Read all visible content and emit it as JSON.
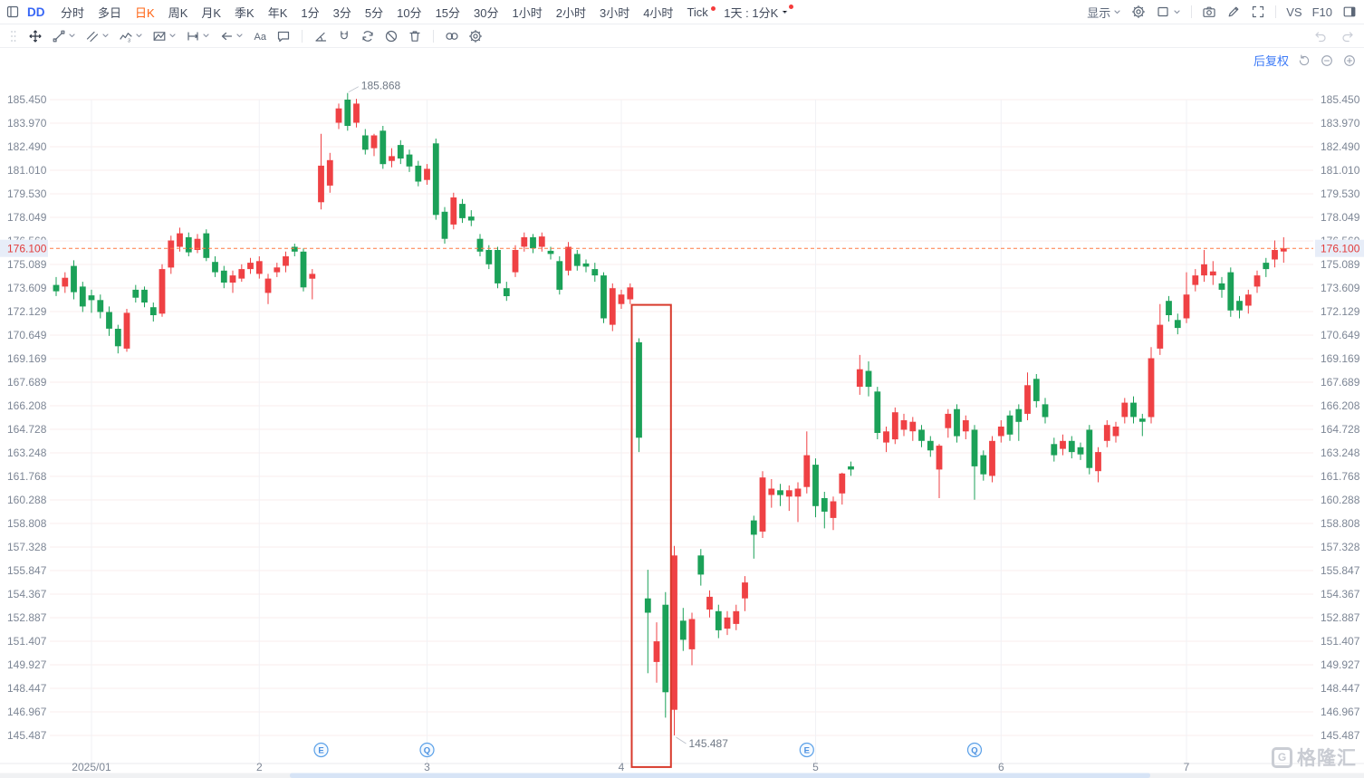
{
  "header": {
    "symbol": "DD",
    "timeframes": [
      {
        "label": "分时"
      },
      {
        "label": "多日"
      },
      {
        "label": "日K",
        "active": true
      },
      {
        "label": "周K"
      },
      {
        "label": "月K"
      },
      {
        "label": "季K"
      },
      {
        "label": "年K"
      },
      {
        "label": "1分"
      },
      {
        "label": "3分"
      },
      {
        "label": "5分"
      },
      {
        "label": "10分"
      },
      {
        "label": "15分"
      },
      {
        "label": "30分"
      },
      {
        "label": "1小时"
      },
      {
        "label": "2小时"
      },
      {
        "label": "3小时"
      },
      {
        "label": "4小时"
      },
      {
        "label": "Tick",
        "dot": true
      }
    ],
    "custom_timeframe": {
      "label": "1天 : 1分K",
      "dot": true
    },
    "right_controls": [
      {
        "name": "display-menu",
        "label": "显示",
        "chevron": true
      },
      {
        "name": "indicator-settings",
        "icon": "gear-icon"
      },
      {
        "name": "chart-style",
        "icon": "rect-icon",
        "chevron": true
      },
      {
        "divider": true
      },
      {
        "name": "screenshot",
        "icon": "camera-icon"
      },
      {
        "name": "annotate",
        "icon": "pencil-icon"
      },
      {
        "name": "fullscreen",
        "icon": "expand-icon"
      },
      {
        "divider": true
      },
      {
        "name": "compare",
        "label": "VS"
      },
      {
        "name": "f10",
        "label": "F10"
      },
      {
        "name": "right-panel",
        "icon": "sidebar-icon"
      }
    ]
  },
  "drawing_toolbar": {
    "tools": [
      {
        "name": "cursor",
        "icon": "move-cross-icon",
        "active": true
      },
      {
        "name": "trend-line",
        "icon": "trend-line-icon",
        "chevron": true
      },
      {
        "name": "channel",
        "icon": "channel-icon",
        "chevron": true
      },
      {
        "name": "wave",
        "icon": "wave-icon",
        "chevron": true
      },
      {
        "name": "pattern",
        "icon": "pattern-icon",
        "chevron": true
      },
      {
        "name": "measure",
        "icon": "measure-icon",
        "chevron": true
      },
      {
        "name": "arrow",
        "icon": "arrow-left-icon",
        "chevron": true
      },
      {
        "name": "text",
        "icon": "text-icon"
      },
      {
        "name": "comment",
        "icon": "comment-icon"
      },
      {
        "divider": true
      },
      {
        "name": "angle",
        "icon": "angle-icon"
      },
      {
        "name": "magnet",
        "icon": "magnet-icon"
      },
      {
        "name": "continuous-draw",
        "icon": "sync-icon"
      },
      {
        "name": "hide-drawings",
        "icon": "ban-icon"
      },
      {
        "name": "delete-drawings",
        "icon": "trash-icon"
      },
      {
        "divider": true
      },
      {
        "name": "overlay-compare",
        "icon": "rings-icon"
      },
      {
        "name": "draw-settings",
        "icon": "gear-icon"
      }
    ]
  },
  "chart_overlay": {
    "adjustment_label": "后复权",
    "watermark": "格隆汇",
    "watermark_logo": "G"
  },
  "chart_data": {
    "type": "candlestick",
    "symbol": "DD",
    "period": "日K",
    "date_range": "2025/01 - 2025/07",
    "price_axis_labels": [
      "185.450",
      "183.970",
      "182.490",
      "181.010",
      "179.530",
      "178.049",
      "176.569",
      "175.089",
      "173.609",
      "172.129",
      "170.649",
      "169.169",
      "167.689",
      "166.208",
      "164.728",
      "163.248",
      "161.768",
      "160.288",
      "158.808",
      "157.328",
      "155.847",
      "154.367",
      "152.887",
      "151.407",
      "149.927",
      "148.447",
      "146.967",
      "145.487"
    ],
    "axis_top_value": 185.45,
    "axis_bottom_value": 145.487,
    "months": [
      {
        "label": "2025/01",
        "index": 4
      },
      {
        "label": "2",
        "index": 23
      },
      {
        "label": "3",
        "index": 42
      },
      {
        "label": "4",
        "index": 64
      },
      {
        "label": "5",
        "index": 86
      },
      {
        "label": "6",
        "index": 107
      },
      {
        "label": "7",
        "index": 128
      }
    ],
    "event_markers": [
      {
        "letter": "E",
        "index": 30
      },
      {
        "letter": "Q",
        "index": 42
      },
      {
        "letter": "E",
        "index": 85
      },
      {
        "letter": "Q",
        "index": 104
      }
    ],
    "current_price": "176.100",
    "high_annotation": {
      "index": 33,
      "label": "185.868"
    },
    "low_annotation": {
      "index": 70,
      "label": "145.487"
    },
    "drawing_rectangle": {
      "from_index": 66,
      "to_index": 69,
      "top_price": 172.55,
      "bottom_price": 143.5
    },
    "colors": {
      "up": "#ef4144",
      "down": "#1ba158",
      "current_price_line": "#ff7a45",
      "current_price_text": "#e23b3b",
      "current_price_bg": "#e7edf8",
      "marker_blue": "#4a90e0",
      "axis_text": "#7d8695",
      "grid_h": "#f8ecec",
      "grid_v": "#f1f2f5",
      "annotation_red": "#d83a2c"
    },
    "ohlc": [
      [
        173.8,
        174.3,
        173.1,
        173.4
      ],
      [
        173.7,
        174.6,
        173.3,
        174.25
      ],
      [
        175.0,
        175.35,
        172.9,
        173.35
      ],
      [
        173.7,
        174.0,
        172.1,
        172.45
      ],
      [
        173.15,
        173.5,
        172.05,
        172.85
      ],
      [
        172.85,
        173.2,
        171.7,
        172.1
      ],
      [
        172.1,
        172.45,
        170.6,
        171.05
      ],
      [
        171.05,
        171.3,
        169.5,
        169.95
      ],
      [
        169.8,
        172.3,
        169.6,
        172.05
      ],
      [
        173.5,
        173.8,
        172.7,
        173.0
      ],
      [
        173.5,
        173.7,
        172.4,
        172.7
      ],
      [
        172.4,
        172.7,
        171.5,
        171.9
      ],
      [
        172.0,
        175.1,
        171.8,
        174.8
      ],
      [
        174.9,
        176.9,
        174.5,
        176.6
      ],
      [
        176.2,
        177.4,
        175.9,
        177.05
      ],
      [
        176.8,
        177.1,
        175.6,
        175.85
      ],
      [
        176.0,
        177.0,
        175.8,
        176.7
      ],
      [
        177.05,
        177.3,
        175.3,
        175.5
      ],
      [
        175.25,
        175.6,
        174.3,
        174.6
      ],
      [
        174.7,
        175.0,
        173.6,
        173.95
      ],
      [
        173.95,
        174.7,
        173.3,
        174.4
      ],
      [
        174.2,
        175.1,
        174.0,
        174.8
      ],
      [
        174.8,
        175.5,
        174.5,
        175.2
      ],
      [
        174.5,
        175.6,
        174.2,
        175.3
      ],
      [
        173.3,
        174.5,
        172.6,
        174.2
      ],
      [
        174.6,
        175.2,
        174.3,
        174.9
      ],
      [
        175.0,
        175.9,
        174.6,
        175.6
      ],
      [
        176.2,
        176.4,
        175.6,
        175.9
      ],
      [
        175.9,
        176.1,
        173.4,
        173.65
      ],
      [
        174.2,
        174.8,
        172.9,
        174.5
      ],
      [
        179.0,
        183.3,
        178.55,
        181.3
      ],
      [
        180.05,
        182.1,
        179.6,
        181.65
      ],
      [
        184.0,
        185.2,
        183.6,
        184.9
      ],
      [
        185.45,
        185.868,
        183.5,
        183.8
      ],
      [
        184.0,
        185.5,
        183.7,
        185.2
      ],
      [
        183.2,
        183.6,
        182.0,
        182.3
      ],
      [
        182.4,
        183.3,
        181.9,
        183.2
      ],
      [
        183.5,
        183.8,
        181.1,
        181.4
      ],
      [
        181.6,
        182.4,
        181.2,
        181.9
      ],
      [
        182.6,
        182.9,
        181.4,
        181.75
      ],
      [
        182.0,
        182.3,
        180.9,
        181.25
      ],
      [
        181.3,
        181.6,
        180.0,
        180.3
      ],
      [
        180.4,
        181.4,
        180.1,
        181.1
      ],
      [
        182.7,
        183.0,
        177.9,
        178.2
      ],
      [
        178.4,
        178.7,
        176.4,
        176.7
      ],
      [
        177.6,
        179.6,
        177.3,
        179.3
      ],
      [
        178.9,
        179.2,
        177.7,
        178.0
      ],
      [
        178.1,
        178.5,
        177.5,
        177.85
      ],
      [
        176.7,
        177.0,
        175.6,
        175.9
      ],
      [
        176.0,
        176.3,
        174.8,
        175.1
      ],
      [
        176.0,
        176.2,
        173.6,
        173.9
      ],
      [
        173.6,
        174.0,
        172.8,
        173.1
      ],
      [
        174.6,
        176.3,
        174.3,
        176.0
      ],
      [
        176.2,
        177.1,
        175.9,
        176.8
      ],
      [
        176.8,
        177.0,
        175.8,
        176.1
      ],
      [
        176.2,
        177.1,
        175.9,
        176.85
      ],
      [
        175.95,
        176.2,
        175.4,
        175.75
      ],
      [
        175.3,
        175.6,
        173.2,
        173.5
      ],
      [
        174.7,
        176.5,
        174.4,
        176.2
      ],
      [
        175.75,
        176.0,
        174.7,
        175.0
      ],
      [
        175.15,
        175.4,
        174.6,
        174.95
      ],
      [
        174.8,
        175.2,
        174.0,
        174.4
      ],
      [
        174.4,
        174.6,
        171.4,
        171.7
      ],
      [
        171.3,
        173.9,
        170.9,
        173.6
      ],
      [
        172.6,
        173.5,
        172.3,
        173.2
      ],
      [
        172.9,
        173.9,
        172.6,
        173.65
      ],
      [
        170.2,
        170.45,
        163.3,
        164.2
      ],
      [
        154.1,
        155.9,
        149.4,
        153.2
      ],
      [
        150.1,
        152.6,
        148.8,
        151.4
      ],
      [
        153.7,
        154.5,
        146.6,
        148.2
      ],
      [
        147.1,
        157.4,
        145.487,
        156.8
      ],
      [
        152.7,
        153.5,
        150.8,
        151.5
      ],
      [
        150.9,
        153.2,
        149.9,
        152.8
      ],
      [
        156.8,
        157.2,
        154.9,
        155.6
      ],
      [
        153.4,
        154.6,
        152.9,
        154.2
      ],
      [
        153.3,
        153.7,
        151.6,
        152.1
      ],
      [
        152.2,
        153.3,
        151.8,
        152.9
      ],
      [
        152.5,
        153.7,
        152.1,
        153.3
      ],
      [
        154.1,
        155.5,
        153.3,
        155.1
      ],
      [
        159.0,
        159.3,
        156.6,
        158.1
      ],
      [
        158.3,
        162.1,
        157.9,
        161.7
      ],
      [
        160.6,
        161.6,
        159.8,
        161.0
      ],
      [
        160.9,
        161.3,
        159.9,
        160.6
      ],
      [
        160.5,
        161.2,
        159.6,
        160.9
      ],
      [
        160.5,
        161.4,
        158.9,
        161.0
      ],
      [
        161.1,
        164.6,
        160.7,
        163.1
      ],
      [
        162.5,
        162.9,
        159.2,
        159.9
      ],
      [
        160.4,
        160.8,
        158.5,
        159.55
      ],
      [
        159.15,
        160.5,
        158.4,
        160.2
      ],
      [
        160.7,
        162.0,
        160.0,
        161.95
      ],
      [
        162.4,
        162.7,
        161.8,
        162.2
      ],
      [
        167.4,
        169.4,
        166.9,
        168.5
      ],
      [
        168.4,
        169.0,
        166.8,
        167.4
      ],
      [
        167.1,
        167.4,
        164.1,
        164.5
      ],
      [
        163.9,
        164.9,
        163.3,
        164.6
      ],
      [
        164.1,
        166.1,
        163.8,
        165.8
      ],
      [
        164.7,
        165.7,
        164.3,
        165.3
      ],
      [
        164.6,
        165.5,
        164.0,
        165.2
      ],
      [
        164.7,
        165.0,
        163.6,
        164.0
      ],
      [
        164.0,
        164.3,
        163.0,
        163.4
      ],
      [
        162.2,
        163.8,
        160.4,
        163.7
      ],
      [
        164.8,
        166.0,
        164.2,
        165.7
      ],
      [
        166.0,
        166.3,
        163.9,
        164.3
      ],
      [
        164.6,
        165.6,
        164.1,
        165.3
      ],
      [
        164.7,
        165.0,
        160.3,
        162.4
      ],
      [
        163.1,
        163.4,
        161.5,
        161.9
      ],
      [
        161.8,
        164.3,
        161.4,
        164.0
      ],
      [
        164.3,
        165.3,
        163.9,
        164.9
      ],
      [
        165.6,
        165.9,
        164.0,
        164.4
      ],
      [
        166.0,
        166.3,
        164.0,
        165.2
      ],
      [
        165.7,
        168.3,
        165.3,
        167.5
      ],
      [
        167.9,
        168.2,
        166.1,
        166.5
      ],
      [
        166.3,
        166.7,
        165.1,
        165.5
      ],
      [
        163.8,
        164.2,
        162.7,
        163.1
      ],
      [
        163.5,
        164.4,
        163.1,
        164.0
      ],
      [
        164.0,
        164.3,
        162.9,
        163.3
      ],
      [
        163.6,
        163.9,
        162.8,
        163.15
      ],
      [
        164.7,
        165.0,
        161.9,
        162.3
      ],
      [
        162.1,
        163.6,
        161.4,
        163.3
      ],
      [
        164.0,
        165.3,
        163.6,
        165.0
      ],
      [
        164.3,
        165.2,
        163.9,
        164.9
      ],
      [
        165.5,
        166.7,
        165.1,
        166.4
      ],
      [
        166.4,
        166.8,
        165.1,
        165.5
      ],
      [
        165.4,
        165.7,
        164.3,
        165.2
      ],
      [
        165.5,
        169.9,
        165.1,
        169.2
      ],
      [
        169.8,
        172.6,
        169.4,
        171.3
      ],
      [
        172.8,
        173.1,
        171.5,
        171.9
      ],
      [
        171.6,
        172.0,
        170.7,
        171.1
      ],
      [
        171.7,
        174.6,
        171.4,
        173.2
      ],
      [
        173.8,
        174.8,
        173.4,
        174.4
      ],
      [
        174.4,
        176.0,
        174.0,
        175.1
      ],
      [
        174.4,
        175.3,
        173.8,
        174.65
      ],
      [
        173.9,
        174.3,
        173.0,
        173.5
      ],
      [
        174.6,
        174.9,
        171.8,
        172.2
      ],
      [
        172.8,
        173.1,
        171.7,
        172.2
      ],
      [
        172.5,
        173.5,
        172.0,
        173.2
      ],
      [
        173.7,
        174.7,
        173.3,
        174.4
      ],
      [
        175.2,
        175.5,
        174.3,
        174.8
      ],
      [
        175.4,
        176.6,
        174.9,
        176.0
      ],
      [
        175.9,
        176.8,
        175.2,
        176.1
      ]
    ]
  }
}
